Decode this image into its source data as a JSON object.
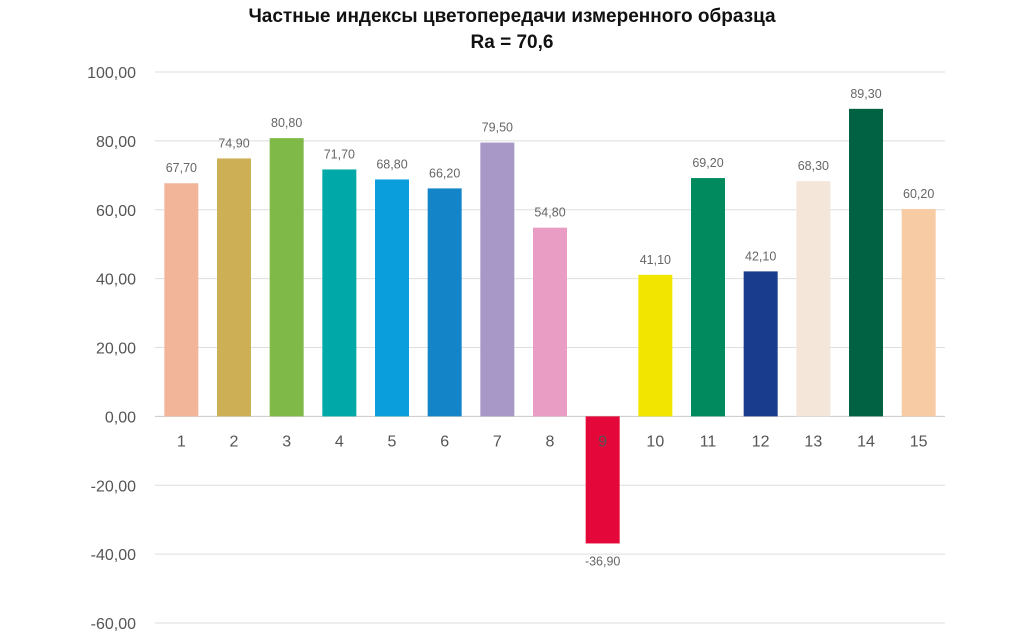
{
  "chart_data": {
    "type": "bar",
    "title": "Частные индексы цветопередачи  измеренного образца",
    "subtitle": "Ra = 70,6",
    "xlabel": "",
    "ylabel": "",
    "categories": [
      "1",
      "2",
      "3",
      "4",
      "5",
      "6",
      "7",
      "8",
      "9",
      "10",
      "11",
      "12",
      "13",
      "14",
      "15"
    ],
    "values": [
      67.7,
      74.9,
      80.8,
      71.7,
      68.8,
      66.2,
      79.5,
      54.8,
      -36.9,
      41.1,
      69.2,
      42.1,
      68.3,
      89.3,
      60.2
    ],
    "value_labels": [
      "67,70",
      "74,90",
      "80,80",
      "71,70",
      "68,80",
      "66,20",
      "79,50",
      "54,80",
      "-36,90",
      "41,10",
      "69,20",
      "42,10",
      "68,30",
      "89,30",
      "60,20"
    ],
    "colors": [
      "#f2b59a",
      "#cdb055",
      "#7fba48",
      "#00a9a8",
      "#0a9fdc",
      "#1484c8",
      "#a898c8",
      "#e99dc5",
      "#e4083a",
      "#f2e500",
      "#008a5e",
      "#1a3c8c",
      "#f5e6da",
      "#006143",
      "#f7cba3"
    ],
    "ylim": [
      -60,
      100
    ],
    "yticks": [
      100,
      80,
      60,
      40,
      20,
      0,
      -20,
      -40,
      -60
    ],
    "ytick_labels": [
      "100,00",
      "80,00",
      "60,00",
      "40,00",
      "20,00",
      "0,00",
      "-20,00",
      "-40,00",
      "-60,00"
    ],
    "grid": true,
    "legend": "none"
  }
}
